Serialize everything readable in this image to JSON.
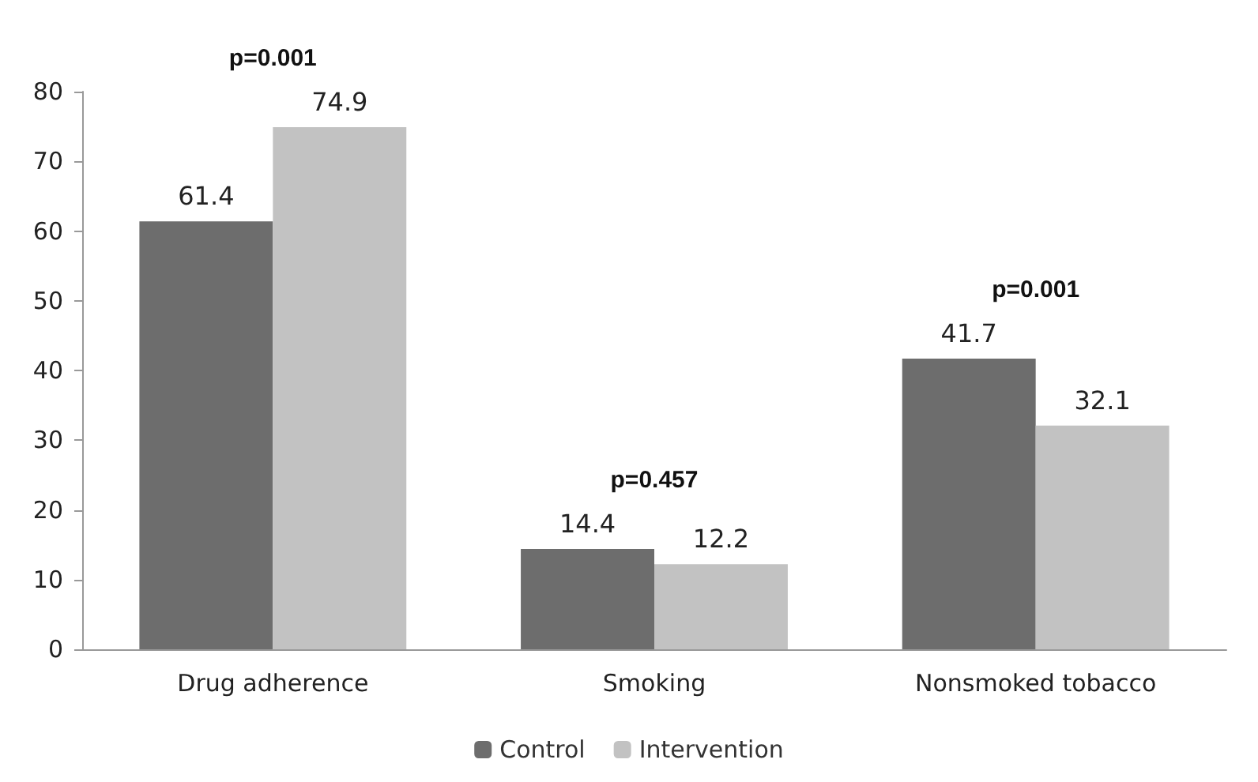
{
  "chart_data": {
    "type": "bar",
    "categories": [
      "Drug adherence",
      "Smoking",
      "Nonsmoked tobacco"
    ],
    "series": [
      {
        "name": "Control",
        "color": "#6d6d6d",
        "values": [
          61.4,
          14.4,
          41.7
        ]
      },
      {
        "name": "Intervention",
        "color": "#c2c2c2",
        "values": [
          74.9,
          12.2,
          32.1
        ]
      }
    ],
    "ylim": [
      0,
      80
    ],
    "yticks": [
      0,
      10,
      20,
      30,
      40,
      50,
      60,
      70,
      80
    ],
    "grid": false,
    "legend": "bottom",
    "data_labels": true,
    "annotations": [
      "p=0.001",
      "p=0.457",
      "p=0.001"
    ]
  }
}
